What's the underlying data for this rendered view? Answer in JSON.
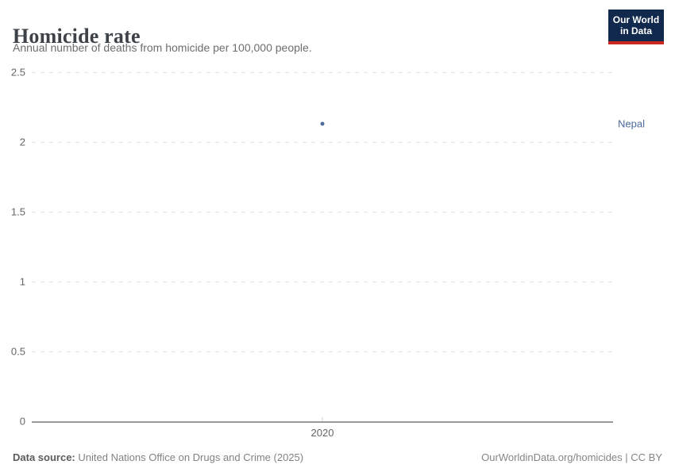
{
  "header": {
    "title": "Homicide rate",
    "subtitle": "Annual number of deaths from homicide per 100,000 people.",
    "logo": {
      "line1": "Our World",
      "line2": "in Data",
      "bg_color": "#12294e",
      "stripe_color": "#cb2821",
      "text_color": "#ffffff"
    }
  },
  "chart_data": {
    "type": "scatter",
    "title": "Homicide rate",
    "subtitle": "Annual number of deaths from homicide per 100,000 people.",
    "xlabel": "",
    "ylabel": "",
    "ylim": [
      0,
      2.5
    ],
    "yticks": [
      0,
      0.5,
      1,
      1.5,
      2,
      2.5
    ],
    "xticks": [
      "2020"
    ],
    "grid": "horizontal-dashed",
    "legend_position": "entity-label-right",
    "series": [
      {
        "name": "Nepal",
        "color": "#4c6a9c",
        "points": [
          {
            "x": 2020,
            "y": 2.13
          }
        ]
      }
    ]
  },
  "footer": {
    "source_label": "Data source:",
    "source_text": "United Nations Office on Drugs and Crime (2025)",
    "credit_text": "OurWorldinData.org/homicides | CC BY"
  },
  "colors": {
    "accent_blue": "#4c6a9c",
    "gridline": "#e2e2e2",
    "axis_line": "#999999",
    "tick_label": "#666666"
  }
}
